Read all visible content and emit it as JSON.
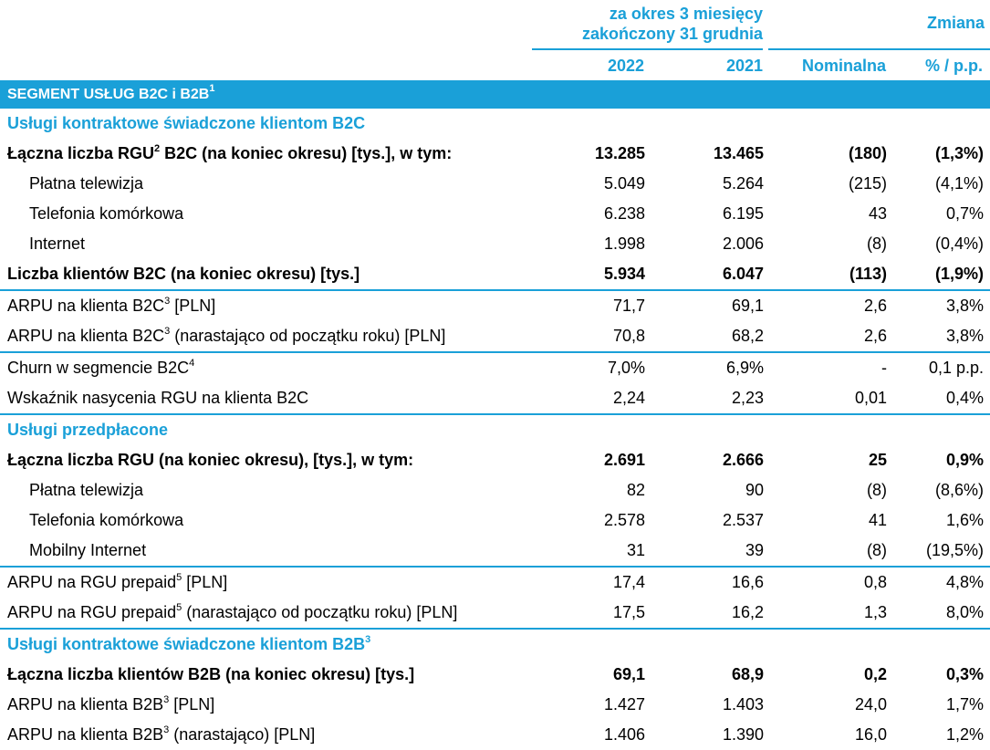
{
  "header": {
    "period_line1": "za okres 3 miesięcy",
    "period_line2": "zakończony 31 grudnia",
    "change_title": "Zmiana",
    "col_2022": "2022",
    "col_2021": "2021",
    "col_nominal": "Nominalna",
    "col_pct": "% / p.p."
  },
  "segment": {
    "label": "SEGMENT USŁUG B2C i B2B",
    "sup": "1"
  },
  "rows": [
    {
      "type": "section",
      "label": "Usługi kontraktowe świadczone klientom B2C"
    },
    {
      "type": "bold",
      "label": "Łączna liczba RGU",
      "sup": "2",
      "label2": " B2C (na koniec okresu) [tys.], w tym:",
      "v2022": "13.285",
      "v2021": "13.465",
      "nominal": "(180)",
      "pct": "(1,3%)"
    },
    {
      "type": "indent",
      "label": "Płatna telewizja",
      "v2022": "5.049",
      "v2021": "5.264",
      "nominal": "(215)",
      "pct": "(4,1%)"
    },
    {
      "type": "indent",
      "label": "Telefonia komórkowa",
      "v2022": "6.238",
      "v2021": "6.195",
      "nominal": "43",
      "pct": "0,7%"
    },
    {
      "type": "indent",
      "label": "Internet",
      "v2022": "1.998",
      "v2021": "2.006",
      "nominal": "(8)",
      "pct": "(0,4%)"
    },
    {
      "type": "bold",
      "label": "Liczba klientów B2C (na koniec okresu) [tys.]",
      "v2022": "5.934",
      "v2021": "6.047",
      "nominal": "(113)",
      "pct": "(1,9%)"
    },
    {
      "type": "normal",
      "border": true,
      "label": "ARPU na klienta B2C",
      "sup": "3",
      "label2": " [PLN]",
      "v2022": "71,7",
      "v2021": "69,1",
      "nominal": "2,6",
      "pct": "3,8%"
    },
    {
      "type": "normal",
      "label": "ARPU na klienta B2C",
      "sup": "3",
      "label2": " (narastająco od początku roku) [PLN]",
      "v2022": "70,8",
      "v2021": "68,2",
      "nominal": "2,6",
      "pct": "3,8%"
    },
    {
      "type": "normal",
      "border": true,
      "label": "Churn w segmencie B2C",
      "sup": "4",
      "v2022": "7,0%",
      "v2021": "6,9%",
      "nominal": "-",
      "pct": "0,1 p.p."
    },
    {
      "type": "normal",
      "label": "Wskaźnik nasycenia RGU na klienta B2C",
      "v2022": "2,24",
      "v2021": "2,23",
      "nominal": "0,01",
      "pct": "0,4%"
    },
    {
      "type": "section",
      "border": true,
      "label": "Usługi przedpłacone"
    },
    {
      "type": "bold",
      "label": "Łączna liczba RGU (na koniec okresu), [tys.], w tym:",
      "v2022": "2.691",
      "v2021": "2.666",
      "nominal": "25",
      "pct": "0,9%"
    },
    {
      "type": "indent",
      "label": "Płatna telewizja",
      "v2022": "82",
      "v2021": "90",
      "nominal": "(8)",
      "pct": "(8,6%)"
    },
    {
      "type": "indent",
      "label": "Telefonia komórkowa",
      "v2022": "2.578",
      "v2021": "2.537",
      "nominal": "41",
      "pct": "1,6%"
    },
    {
      "type": "indent",
      "label": "Mobilny Internet",
      "v2022": "31",
      "v2021": "39",
      "nominal": "(8)",
      "pct": "(19,5%)"
    },
    {
      "type": "normal",
      "border": true,
      "label": "ARPU na RGU prepaid",
      "sup": "5",
      "label2": " [PLN]",
      "v2022": "17,4",
      "v2021": "16,6",
      "nominal": "0,8",
      "pct": "4,8%"
    },
    {
      "type": "normal",
      "label": "ARPU na RGU prepaid",
      "sup": "5",
      "label2": " (narastająco od początku roku) [PLN]",
      "v2022": "17,5",
      "v2021": "16,2",
      "nominal": "1,3",
      "pct": "8,0%"
    },
    {
      "type": "section",
      "border": true,
      "label": "Usługi kontraktowe świadczone klientom B2B",
      "sup": "3"
    },
    {
      "type": "bold",
      "label": "Łączna liczba klientów B2B (na koniec okresu) [tys.]",
      "v2022": "69,1",
      "v2021": "68,9",
      "nominal": "0,2",
      "pct": "0,3%"
    },
    {
      "type": "normal",
      "label": "ARPU na klienta B2B",
      "sup": "3",
      "label2": " [PLN]",
      "v2022": "1.427",
      "v2021": "1.403",
      "nominal": "24,0",
      "pct": "1,7%"
    },
    {
      "type": "normal",
      "label": "ARPU na klienta B2B",
      "sup": "3",
      "label2": " (narastająco) [PLN]",
      "v2022": "1.406",
      "v2021": "1.390",
      "nominal": "16,0",
      "pct": "1,2%"
    }
  ]
}
